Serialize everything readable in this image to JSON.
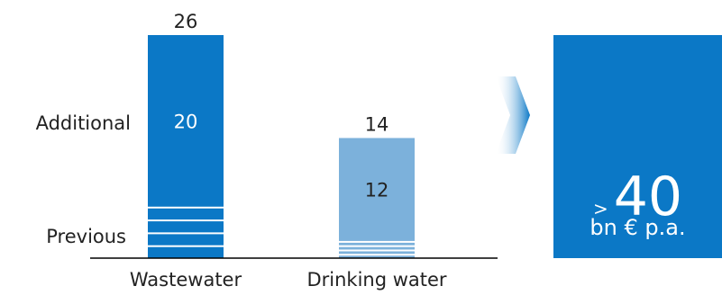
{
  "chart_data": {
    "type": "bar",
    "stacked": true,
    "categories": [
      "Wastewater",
      "Drinking water"
    ],
    "series": [
      {
        "name": "Previous",
        "values": [
          6,
          2
        ],
        "pattern": "striped"
      },
      {
        "name": "Additional",
        "values": [
          20,
          12
        ]
      }
    ],
    "totals": [
      26,
      14
    ],
    "ylim": [
      0,
      26
    ],
    "grid": false,
    "colors": {
      "wastewater": "#0b78c6",
      "drinking_water": "#7cb1db",
      "summary_box": "#0b78c6",
      "arrow": "#0b78c6"
    }
  },
  "summary": {
    "prefix": ">",
    "value": "40",
    "unit": "bn € p.a."
  }
}
